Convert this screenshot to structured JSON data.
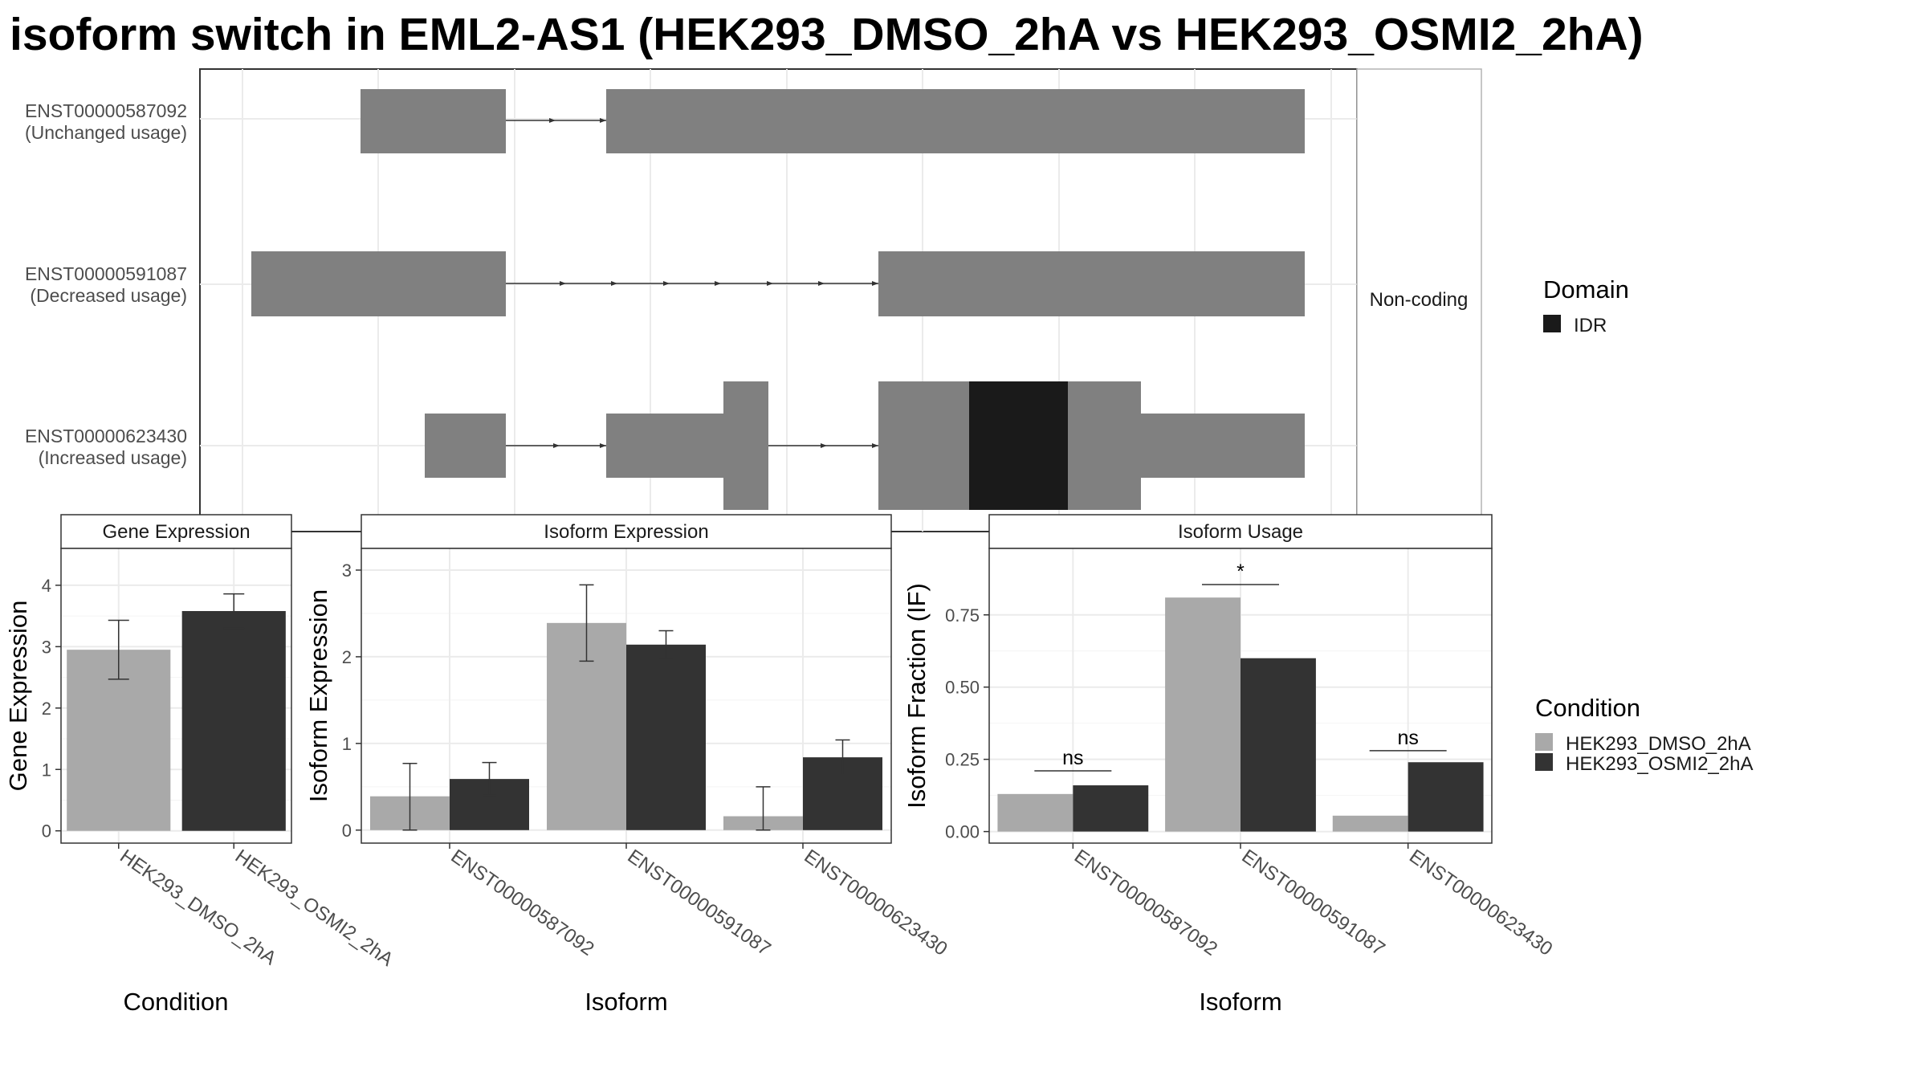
{
  "title": "isoform switch in EML2-AS1 (HEK293_DMSO_2hA vs HEK293_OSMI2_2hA)",
  "colors": {
    "condition_1": "#A9A9A9",
    "condition_2": "#333333",
    "exon": "#808080",
    "domain_idr": "#1A1A1A"
  },
  "structure": {
    "facet_strip": "Non-coding",
    "isoforms": [
      {
        "id": "ENST00000587092",
        "usage": "(Unchanged usage)"
      },
      {
        "id": "ENST00000591087",
        "usage": "(Decreased usage)"
      },
      {
        "id": "ENST00000623430",
        "usage": "(Increased usage)"
      }
    ]
  },
  "legends": {
    "domain": {
      "title": "Domain",
      "items": [
        {
          "label": "IDR",
          "color": "#1A1A1A"
        }
      ]
    },
    "condition": {
      "title": "Condition",
      "items": [
        {
          "label": "HEK293_DMSO_2hA",
          "color": "#A9A9A9"
        },
        {
          "label": "HEK293_OSMI2_2hA",
          "color": "#333333"
        }
      ]
    }
  },
  "chart_data": [
    {
      "type": "bar",
      "title": "Gene Expression",
      "xlabel": "Condition",
      "ylabel": "Gene Expression",
      "categories": [
        "HEK293_DMSO_2hA",
        "HEK293_OSMI2_2hA"
      ],
      "values": [
        2.95,
        3.58
      ],
      "error": [
        [
          2.47,
          3.43
        ],
        [
          3.3,
          3.86
        ]
      ],
      "ylim": [
        -0.2,
        4.6
      ],
      "yticks": [
        0,
        1,
        2,
        3,
        4
      ],
      "ytick_labels": [
        "0",
        "1",
        "2",
        "3",
        "4"
      ],
      "grid": true
    },
    {
      "type": "bar",
      "title": "Isoform Expression",
      "xlabel": "Isoform",
      "ylabel": "Isoform Expression",
      "categories": [
        "ENST00000587092",
        "ENST00000591087",
        "ENST00000623430"
      ],
      "series": [
        {
          "name": "HEK293_DMSO_2hA",
          "values": [
            0.39,
            2.39,
            0.16
          ],
          "error": [
            [
              0.0,
              0.77
            ],
            [
              1.95,
              2.83
            ],
            [
              0.0,
              0.5
            ]
          ]
        },
        {
          "name": "HEK293_OSMI2_2hA",
          "values": [
            0.59,
            2.14,
            0.84
          ],
          "error": [
            [
              0.4,
              0.78
            ],
            [
              1.98,
              2.3
            ],
            [
              0.64,
              1.04
            ]
          ]
        }
      ],
      "ylim": [
        -0.15,
        3.25
      ],
      "yticks": [
        0,
        1,
        2,
        3
      ],
      "ytick_labels": [
        "0",
        "1",
        "2",
        "3"
      ],
      "grid": true
    },
    {
      "type": "bar",
      "title": "Isoform Usage",
      "xlabel": "Isoform",
      "ylabel": "Isoform Fraction (IF)",
      "categories": [
        "ENST00000587092",
        "ENST00000591087",
        "ENST00000623430"
      ],
      "series": [
        {
          "name": "HEK293_DMSO_2hA",
          "values": [
            0.13,
            0.81,
            0.055
          ]
        },
        {
          "name": "HEK293_OSMI2_2hA",
          "values": [
            0.16,
            0.6,
            0.24
          ]
        }
      ],
      "significance": [
        {
          "label": "ns",
          "y": 0.21
        },
        {
          "label": "*",
          "y": 0.855
        },
        {
          "label": "ns",
          "y": 0.28
        }
      ],
      "ylim": [
        -0.04,
        0.98
      ],
      "yticks": [
        0,
        0.25,
        0.5,
        0.75
      ],
      "ytick_labels": [
        "0.00",
        "0.25",
        "0.50",
        "0.75"
      ],
      "grid": true
    }
  ]
}
